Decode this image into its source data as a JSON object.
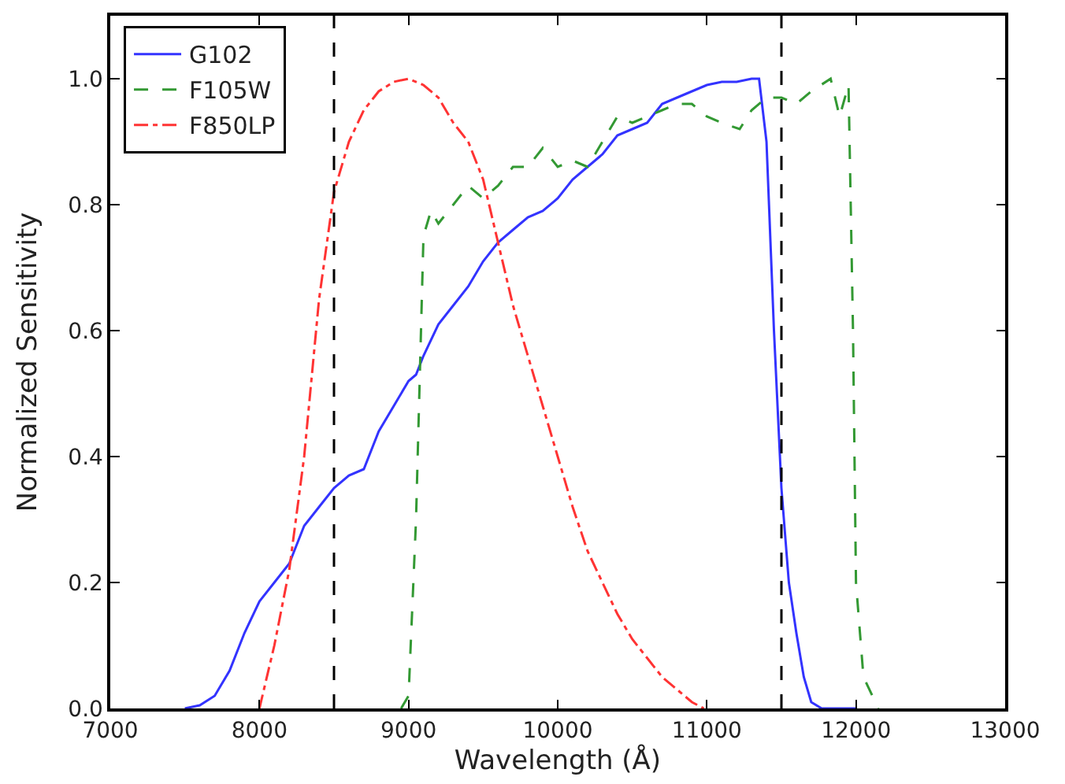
{
  "chart_data": {
    "type": "line",
    "xlabel": "Wavelength (Å)",
    "ylabel": "Normalized Sensitivity",
    "xlim": [
      7000,
      13000
    ],
    "xticks": [
      7000,
      8000,
      9000,
      10000,
      11000,
      12000,
      13000
    ],
    "ylim": [
      0,
      1.1
    ],
    "yticks": [
      {
        "value": 0,
        "label": "0.0"
      },
      0.2,
      0.4,
      0.6,
      0.8,
      {
        "value": 1,
        "label": "1.0"
      }
    ],
    "legend": "top left",
    "marker": "none",
    "series": [
      {
        "name": "G102",
        "color": "#3333ff",
        "line_style": "solid",
        "x": [
          7500,
          7600,
          7700,
          7800,
          7900,
          8000,
          8100,
          8200,
          8300,
          8400,
          8500,
          8600,
          8700,
          8800,
          8900,
          9000,
          9050,
          9100,
          9200,
          9300,
          9400,
          9500,
          9600,
          9700,
          9800,
          9900,
          10000,
          10100,
          10200,
          10300,
          10400,
          10500,
          10600,
          10700,
          10800,
          10900,
          11000,
          11100,
          11200,
          11300,
          11350,
          11400,
          11450,
          11500,
          11550,
          11600,
          11650,
          11700,
          11770,
          12000
        ],
        "values": [
          0,
          0.005,
          0.02,
          0.06,
          0.12,
          0.17,
          0.2,
          0.23,
          0.29,
          0.32,
          0.35,
          0.37,
          0.38,
          0.44,
          0.48,
          0.52,
          0.53,
          0.56,
          0.61,
          0.64,
          0.67,
          0.71,
          0.74,
          0.76,
          0.78,
          0.79,
          0.81,
          0.84,
          0.86,
          0.88,
          0.91,
          0.92,
          0.93,
          0.96,
          0.97,
          0.98,
          0.99,
          0.995,
          0.995,
          1.0,
          1.0,
          0.9,
          0.6,
          0.35,
          0.2,
          0.12,
          0.05,
          0.01,
          0,
          0
        ]
      },
      {
        "name": "F105W",
        "color": "#339933",
        "line_style": "dashed",
        "x": [
          8950,
          9000,
          9050,
          9100,
          9150,
          9200,
          9300,
          9400,
          9500,
          9600,
          9700,
          9800,
          9900,
          10000,
          10100,
          10200,
          10300,
          10400,
          10500,
          10600,
          10700,
          10800,
          10900,
          11000,
          11100,
          11220,
          11300,
          11400,
          11500,
          11600,
          11700,
          11830,
          11890,
          11950,
          11980,
          12000,
          12050,
          12150
        ],
        "values": [
          0,
          0.02,
          0.3,
          0.75,
          0.79,
          0.77,
          0.8,
          0.83,
          0.81,
          0.83,
          0.86,
          0.86,
          0.89,
          0.86,
          0.87,
          0.86,
          0.9,
          0.94,
          0.93,
          0.94,
          0.95,
          0.96,
          0.96,
          0.94,
          0.93,
          0.92,
          0.95,
          0.97,
          0.97,
          0.96,
          0.98,
          1.0,
          0.94,
          0.99,
          0.6,
          0.2,
          0.05,
          0
        ]
      },
      {
        "name": "F850LP",
        "color": "#ff3333",
        "line_style": "dashdot",
        "x": [
          8000,
          8100,
          8200,
          8300,
          8400,
          8500,
          8600,
          8700,
          8800,
          8900,
          9000,
          9100,
          9200,
          9300,
          9400,
          9500,
          9600,
          9700,
          9800,
          9900,
          10000,
          10100,
          10200,
          10300,
          10400,
          10500,
          10600,
          10700,
          10800,
          10900,
          10980
        ],
        "values": [
          0,
          0.1,
          0.22,
          0.4,
          0.65,
          0.82,
          0.9,
          0.95,
          0.98,
          0.995,
          1.0,
          0.99,
          0.97,
          0.93,
          0.9,
          0.84,
          0.74,
          0.64,
          0.56,
          0.48,
          0.4,
          0.32,
          0.25,
          0.2,
          0.15,
          0.11,
          0.08,
          0.05,
          0.03,
          0.01,
          0
        ]
      }
    ],
    "ref_lines": [
      {
        "axis": "x",
        "value": 8500,
        "color": "#000000",
        "line_style": "dashed"
      },
      {
        "axis": "x",
        "value": 11500,
        "color": "#000000",
        "line_style": "dashed"
      }
    ]
  }
}
